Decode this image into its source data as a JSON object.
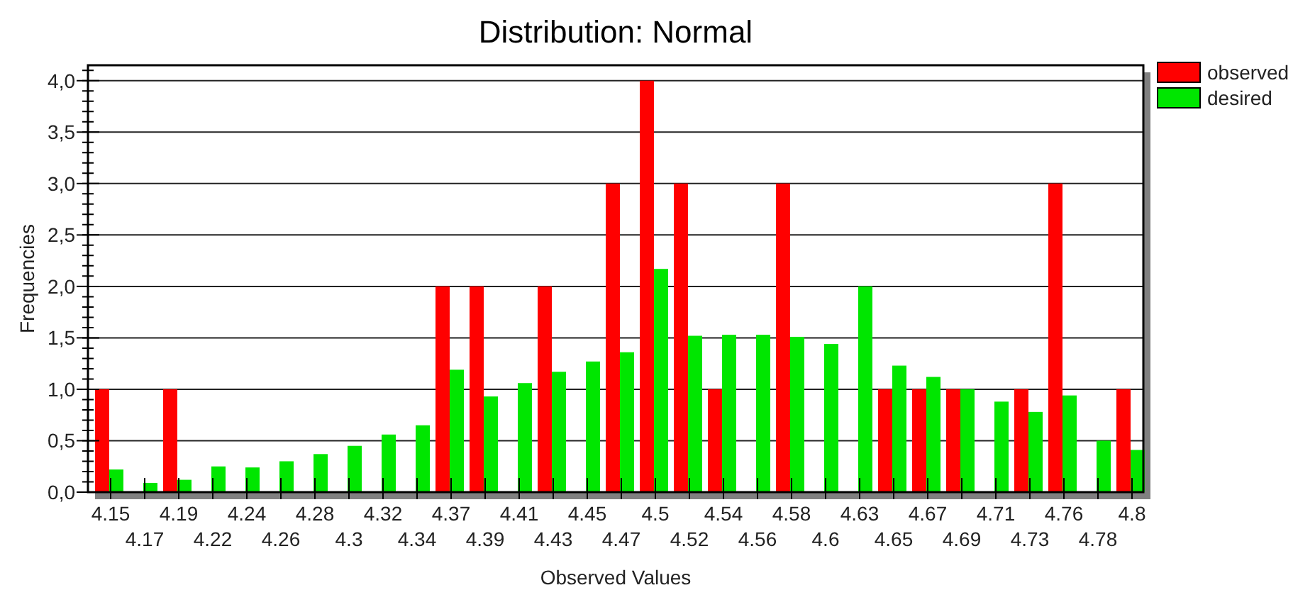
{
  "chart_data": {
    "type": "bar",
    "title": "Distribution: Normal",
    "xlabel": "Observed Values",
    "ylabel": "Frequencies",
    "categories": [
      "4.15",
      "4.17",
      "4.19",
      "4.22",
      "4.24",
      "4.26",
      "4.28",
      "4.3",
      "4.32",
      "4.34",
      "4.37",
      "4.39",
      "4.41",
      "4.43",
      "4.45",
      "4.47",
      "4.5",
      "4.52",
      "4.54",
      "4.56",
      "4.58",
      "4.6",
      "4.63",
      "4.65",
      "4.67",
      "4.69",
      "4.71",
      "4.73",
      "4.76",
      "4.78",
      "4.8"
    ],
    "series": [
      {
        "name": "observed",
        "color": "#ff0000",
        "values": [
          1,
          0,
          1,
          0,
          0,
          0,
          0,
          0,
          0,
          0,
          2,
          2,
          0,
          2,
          0,
          3,
          4,
          3,
          1,
          0,
          3,
          0,
          0,
          1,
          1,
          1,
          0,
          1,
          3,
          0,
          1
        ]
      },
      {
        "name": "desired",
        "color": "#00e600",
        "values": [
          0.22,
          0.09,
          0.12,
          0.25,
          0.24,
          0.3,
          0.37,
          0.45,
          0.56,
          0.65,
          1.19,
          0.93,
          1.06,
          1.17,
          1.27,
          1.36,
          2.17,
          1.52,
          1.53,
          1.53,
          1.51,
          1.44,
          2.0,
          1.23,
          1.12,
          1.0,
          0.88,
          0.78,
          0.94,
          0.5,
          0.41
        ]
      }
    ],
    "ylim": [
      0,
      4.15
    ],
    "yticks": [
      {
        "value": 0,
        "label": "0,0"
      },
      {
        "value": 0.5,
        "label": "0,5"
      },
      {
        "value": 1,
        "label": "1,0"
      },
      {
        "value": 1.5,
        "label": "1,5"
      },
      {
        "value": 2,
        "label": "2,0"
      },
      {
        "value": 2.5,
        "label": "2,5"
      },
      {
        "value": 3,
        "label": "3,0"
      },
      {
        "value": 3.5,
        "label": "3,5"
      },
      {
        "value": 4,
        "label": "4,0"
      }
    ],
    "grid": "y",
    "legend": "top right"
  }
}
